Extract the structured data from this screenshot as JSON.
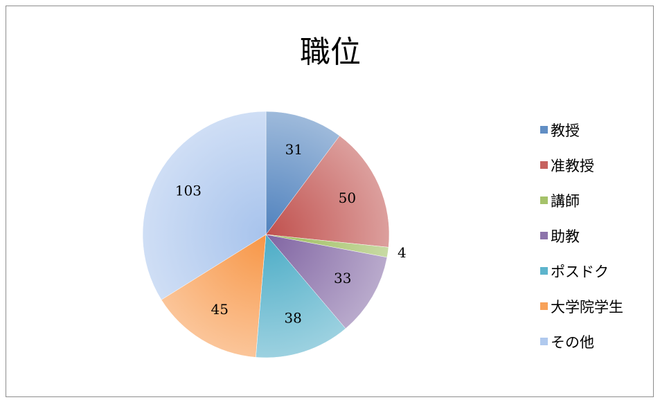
{
  "chart_data": {
    "type": "pie",
    "title": "職位",
    "categories": [
      "教授",
      "准教授",
      "講師",
      "助教",
      "ポスドク",
      "大学院学生",
      "その他"
    ],
    "values": [
      31,
      50,
      4,
      33,
      38,
      45,
      103
    ],
    "colors": [
      "#4f81bd",
      "#c0504d",
      "#9bbb59",
      "#8064a2",
      "#4bacc6",
      "#f79646",
      "#a7c3ec"
    ],
    "legend_position": "right",
    "start_angle": "12 o'clock, clockwise"
  }
}
